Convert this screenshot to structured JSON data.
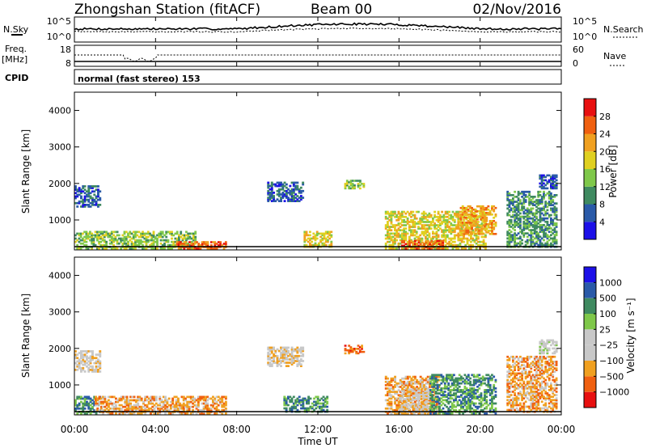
{
  "header": {
    "station": "Zhongshan Station (fitACF)",
    "beam": "Beam 00",
    "date": "02/Nov/2016"
  },
  "status_panel": {
    "nsky_label": "N.Sky",
    "nsky_ticks": [
      "10^5",
      "10^0"
    ],
    "nsearch_label": "N.Search",
    "nsearch_ticks": [
      "10^5",
      "10^0"
    ],
    "freq_label_1": "Freq.",
    "freq_label_2": "[MHz]",
    "freq_ticks": [
      "18",
      "8"
    ],
    "nave_label": "Nave",
    "nave_ticks": [
      "60",
      "0"
    ],
    "cpid_label": "CPID",
    "cpid_value": "normal (fast stereo) 153"
  },
  "colors": {
    "power_scale": [
      "#1c10e8",
      "#2a5aa8",
      "#3f8a60",
      "#7fc84a",
      "#e0d020",
      "#f0a020",
      "#f06010",
      "#e81010"
    ],
    "velocity_scale": [
      "#e81010",
      "#f06010",
      "#f0a020",
      "#c8c8c8",
      "#c8c8c8",
      "#7fc84a",
      "#3f8a60",
      "#2a5aa8",
      "#1c10e8"
    ]
  },
  "chart_data": [
    {
      "type": "heatmap",
      "quantity": "Power",
      "ylabel": "Slant Range [km]",
      "ylim": [
        180,
        4500
      ],
      "yticks": [
        "1000",
        "2000",
        "3000",
        "4000"
      ],
      "colorbar_label": "Power [dB]",
      "colorbar_ticks": [
        "4",
        "8",
        "12",
        "16",
        "20",
        "24",
        "28"
      ],
      "xlim_hours": [
        0,
        24
      ],
      "xticks": [
        "00:00",
        "04:00",
        "08:00",
        "12:00",
        "16:00",
        "20:00",
        "00:00"
      ],
      "xlabel": "Time UT",
      "echo_regions": [
        {
          "t0": 0.0,
          "t1": 6.0,
          "r0": 200,
          "r1": 700,
          "level": 3
        },
        {
          "t0": 5.0,
          "t1": 7.5,
          "r0": 200,
          "r1": 420,
          "level": 6
        },
        {
          "t0": 0.0,
          "t1": 1.3,
          "r0": 1350,
          "r1": 1950,
          "level": 1
        },
        {
          "t0": 9.5,
          "t1": 11.3,
          "r0": 1500,
          "r1": 2050,
          "level": 1
        },
        {
          "t0": 13.3,
          "t1": 14.3,
          "r0": 1850,
          "r1": 2100,
          "level": 3
        },
        {
          "t0": 11.3,
          "t1": 12.7,
          "r0": 250,
          "r1": 700,
          "level": 4
        },
        {
          "t0": 15.3,
          "t1": 20.3,
          "r0": 200,
          "r1": 1250,
          "level": 4
        },
        {
          "t0": 16.1,
          "t1": 18.2,
          "r0": 200,
          "r1": 450,
          "level": 6
        },
        {
          "t0": 19.0,
          "t1": 20.8,
          "r0": 600,
          "r1": 1400,
          "level": 5
        },
        {
          "t0": 21.3,
          "t1": 23.8,
          "r0": 250,
          "r1": 1800,
          "level": 2
        },
        {
          "t0": 22.9,
          "t1": 23.8,
          "r0": 1850,
          "r1": 2250,
          "level": 1
        }
      ]
    },
    {
      "type": "heatmap",
      "quantity": "Velocity",
      "ylabel": "Slant Range [km]",
      "ylim": [
        180,
        4500
      ],
      "yticks": [
        "1000",
        "2000",
        "3000",
        "4000"
      ],
      "colorbar_label": "Velocity [m s⁻¹]",
      "colorbar_ticks": [
        "1000",
        "500",
        "100",
        "25",
        "−25",
        "−100",
        "−500",
        "−1000"
      ],
      "xlim_hours": [
        0,
        24
      ],
      "xticks": [
        "00:00",
        "04:00",
        "08:00",
        "12:00",
        "16:00",
        "20:00",
        "00:00"
      ],
      "xlabel": "Time UT",
      "echo_regions": [
        {
          "t0": 0.0,
          "t1": 1.3,
          "r0": 200,
          "r1": 700,
          "level": 6
        },
        {
          "t0": 1.0,
          "t1": 7.5,
          "r0": 200,
          "r1": 700,
          "level": 2
        },
        {
          "t0": 0.0,
          "t1": 1.3,
          "r0": 1350,
          "r1": 1950,
          "level": 3
        },
        {
          "t0": 9.5,
          "t1": 11.3,
          "r0": 1500,
          "r1": 2050,
          "level": 3
        },
        {
          "t0": 13.3,
          "t1": 14.3,
          "r0": 1850,
          "r1": 2100,
          "level": 1
        },
        {
          "t0": 10.3,
          "t1": 12.5,
          "r0": 250,
          "r1": 700,
          "level": 6
        },
        {
          "t0": 15.3,
          "t1": 18.0,
          "r0": 200,
          "r1": 1250,
          "level": 2
        },
        {
          "t0": 16.0,
          "t1": 17.5,
          "r0": 200,
          "r1": 900,
          "level": 3
        },
        {
          "t0": 17.5,
          "t1": 20.8,
          "r0": 200,
          "r1": 1300,
          "level": 6
        },
        {
          "t0": 21.3,
          "t1": 23.8,
          "r0": 250,
          "r1": 1800,
          "level": 2
        },
        {
          "t0": 22.9,
          "t1": 23.8,
          "r0": 1850,
          "r1": 2250,
          "level": 4
        }
      ]
    }
  ]
}
